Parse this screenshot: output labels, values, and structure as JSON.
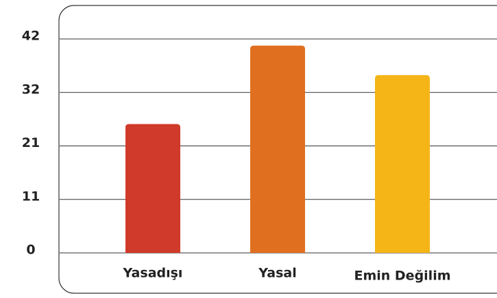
{
  "chart_data": {
    "type": "bar",
    "categories": [
      "Yasadışı",
      "Yasal",
      "Emin Değilim"
    ],
    "values": [
      25.3,
      40.7,
      34.9
    ],
    "colors": [
      "#cf3a2a",
      "#e07020",
      "#f5b517"
    ],
    "ylim": [
      0,
      42
    ],
    "yticks": [
      0,
      {
        "value": 10.5,
        "label": "11"
      },
      21,
      {
        "value": 31.5,
        "label": "32"
      },
      42
    ],
    "grid": true
  }
}
